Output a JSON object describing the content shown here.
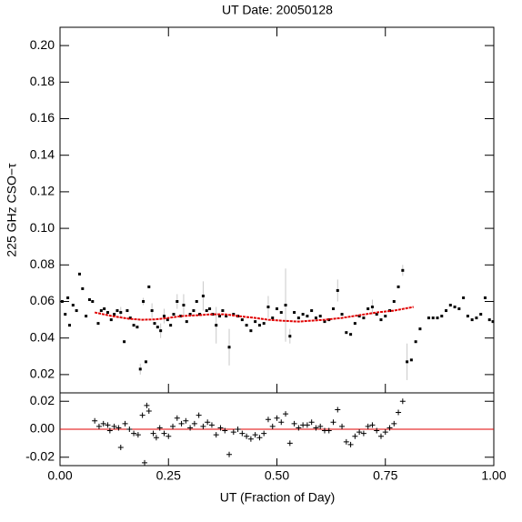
{
  "chart_data": [
    {
      "type": "scatter",
      "title": "UT Date: 20050128",
      "y_label": "225 GHz CSO−τ",
      "color": "#000000",
      "error_color": "#c8c8c8",
      "xlim": [
        0,
        1
      ],
      "ylim": [
        0.01,
        0.21
      ],
      "yticks": [
        {
          "value": 0.02,
          "label": "0.02"
        },
        {
          "value": 0.04,
          "label": "0.04"
        },
        {
          "value": 0.06,
          "label": "0.06"
        },
        {
          "value": 0.08,
          "label": "0.08"
        },
        {
          "value": 0.1,
          "label": "0.10"
        },
        {
          "value": 0.12,
          "label": "0.12"
        },
        {
          "value": 0.14,
          "label": "0.14"
        },
        {
          "value": 0.16,
          "label": "0.16"
        },
        {
          "value": 0.18,
          "label": "0.18"
        },
        {
          "value": 0.2,
          "label": "0.20"
        }
      ],
      "x": [
        0.005,
        0.012,
        0.018,
        0.022,
        0.03,
        0.038,
        0.045,
        0.052,
        0.06,
        0.068,
        0.075,
        0.088,
        0.095,
        0.102,
        0.11,
        0.118,
        0.125,
        0.132,
        0.14,
        0.148,
        0.155,
        0.162,
        0.17,
        0.178,
        0.185,
        0.192,
        0.198,
        0.205,
        0.212,
        0.218,
        0.225,
        0.232,
        0.24,
        0.248,
        0.255,
        0.262,
        0.27,
        0.278,
        0.285,
        0.292,
        0.3,
        0.308,
        0.315,
        0.322,
        0.33,
        0.338,
        0.345,
        0.352,
        0.36,
        0.368,
        0.375,
        0.383,
        0.39,
        0.4,
        0.41,
        0.42,
        0.43,
        0.44,
        0.45,
        0.46,
        0.47,
        0.48,
        0.49,
        0.5,
        0.51,
        0.52,
        0.53,
        0.54,
        0.55,
        0.56,
        0.57,
        0.58,
        0.59,
        0.6,
        0.61,
        0.62,
        0.63,
        0.64,
        0.65,
        0.66,
        0.67,
        0.68,
        0.69,
        0.7,
        0.71,
        0.72,
        0.73,
        0.74,
        0.75,
        0.76,
        0.77,
        0.78,
        0.79,
        0.8,
        0.81,
        0.82,
        0.83,
        0.85,
        0.86,
        0.87,
        0.88,
        0.89,
        0.9,
        0.91,
        0.92,
        0.93,
        0.94,
        0.95,
        0.96,
        0.97,
        0.98,
        0.99,
        0.998
      ],
      "values": [
        0.06,
        0.053,
        0.062,
        0.047,
        0.058,
        0.055,
        0.075,
        0.067,
        0.052,
        0.061,
        0.06,
        0.048,
        0.055,
        0.056,
        0.054,
        0.05,
        0.053,
        0.055,
        0.054,
        0.038,
        0.055,
        0.051,
        0.047,
        0.046,
        0.023,
        0.06,
        0.027,
        0.068,
        0.055,
        0.048,
        0.046,
        0.044,
        0.052,
        0.05,
        0.047,
        0.053,
        0.06,
        0.052,
        0.058,
        0.049,
        0.053,
        0.055,
        0.06,
        0.053,
        0.063,
        0.055,
        0.056,
        0.053,
        0.047,
        0.052,
        0.055,
        0.052,
        0.035,
        0.053,
        0.052,
        0.05,
        0.047,
        0.044,
        0.049,
        0.047,
        0.048,
        0.057,
        0.051,
        0.056,
        0.054,
        0.058,
        0.041,
        0.054,
        0.051,
        0.053,
        0.052,
        0.055,
        0.051,
        0.052,
        0.049,
        0.05,
        0.056,
        0.066,
        0.053,
        0.043,
        0.042,
        0.048,
        0.052,
        0.051,
        0.056,
        0.057,
        0.053,
        0.05,
        0.052,
        0.055,
        0.06,
        0.068,
        0.077,
        0.027,
        0.028,
        0.038,
        0.045,
        0.051,
        0.051,
        0.051,
        0.052,
        0.055,
        0.058,
        0.057,
        0.056,
        0.062,
        0.052,
        0.05,
        0.051,
        0.053,
        0.062,
        0.05,
        0.049
      ],
      "errors": [
        null,
        null,
        null,
        null,
        null,
        null,
        null,
        null,
        null,
        null,
        null,
        null,
        null,
        null,
        null,
        null,
        null,
        null,
        0.003,
        null,
        null,
        null,
        null,
        null,
        0.003,
        0.002,
        null,
        null,
        0.004,
        null,
        null,
        0.004,
        0.004,
        null,
        null,
        null,
        0.004,
        null,
        0.006,
        null,
        null,
        null,
        null,
        null,
        0.008,
        null,
        null,
        null,
        0.01,
        null,
        null,
        null,
        0.01,
        null,
        null,
        null,
        null,
        null,
        null,
        null,
        null,
        0.006,
        null,
        null,
        null,
        0.02,
        0.004,
        null,
        null,
        null,
        null,
        null,
        null,
        null,
        null,
        null,
        null,
        0.006,
        null,
        null,
        null,
        null,
        null,
        null,
        null,
        0.004,
        null,
        null,
        null,
        null,
        null,
        null,
        0.003,
        0.01,
        null,
        null,
        null,
        null,
        null,
        null,
        null,
        null,
        null,
        null,
        null,
        null,
        null,
        null,
        null,
        null,
        null,
        null,
        null
      ],
      "fit": {
        "color": "#e00000",
        "x": [
          0.08,
          0.12,
          0.16,
          0.19,
          0.22,
          0.25,
          0.28,
          0.32,
          0.35,
          0.38,
          0.41,
          0.45,
          0.48,
          0.51,
          0.55,
          0.58,
          0.61,
          0.65,
          0.69,
          0.73,
          0.77,
          0.815
        ],
        "values": [
          0.054,
          0.052,
          0.0505,
          0.05,
          0.0502,
          0.051,
          0.052,
          0.0525,
          0.053,
          0.053,
          0.052,
          0.051,
          0.05,
          0.0495,
          0.049,
          0.0495,
          0.05,
          0.051,
          0.0525,
          0.054,
          0.055,
          0.057
        ]
      }
    },
    {
      "type": "residual",
      "x_label": "UT (Fraction of Day)",
      "color": "#000000",
      "zero_line_color": "#e00000",
      "xlim": [
        0,
        1
      ],
      "ylim": [
        -0.026,
        0.026
      ],
      "xticks": [
        {
          "value": 0,
          "label": "0.00"
        },
        {
          "value": 0.25,
          "label": "0.25"
        },
        {
          "value": 0.5,
          "label": "0.50"
        },
        {
          "value": 0.75,
          "label": "0.75"
        },
        {
          "value": 1,
          "label": "1.00"
        }
      ],
      "yticks": [
        {
          "value": -0.02,
          "label": "-0.02"
        },
        {
          "value": 0,
          "label": "0.00"
        },
        {
          "value": 0.02,
          "label": "0.02"
        }
      ],
      "x": [
        0.08,
        0.09,
        0.1,
        0.11,
        0.115,
        0.125,
        0.135,
        0.14,
        0.15,
        0.16,
        0.17,
        0.18,
        0.19,
        0.195,
        0.2,
        0.205,
        0.215,
        0.222,
        0.23,
        0.24,
        0.25,
        0.26,
        0.27,
        0.28,
        0.29,
        0.3,
        0.31,
        0.32,
        0.33,
        0.34,
        0.35,
        0.36,
        0.37,
        0.38,
        0.39,
        0.4,
        0.41,
        0.42,
        0.43,
        0.44,
        0.45,
        0.46,
        0.47,
        0.48,
        0.49,
        0.5,
        0.51,
        0.52,
        0.53,
        0.54,
        0.55,
        0.56,
        0.57,
        0.58,
        0.59,
        0.6,
        0.61,
        0.62,
        0.63,
        0.64,
        0.65,
        0.66,
        0.67,
        0.68,
        0.69,
        0.7,
        0.71,
        0.72,
        0.73,
        0.74,
        0.75,
        0.76,
        0.77,
        0.78,
        0.79
      ],
      "values": [
        0.006,
        0.002,
        0.004,
        0.003,
        -0.001,
        0.002,
        0.001,
        -0.013,
        0.004,
        0.0,
        -0.003,
        -0.004,
        0.01,
        -0.024,
        0.017,
        0.013,
        -0.003,
        -0.006,
        0.001,
        -0.003,
        -0.005,
        0.002,
        0.008,
        0.004,
        0.006,
        0.001,
        0.004,
        0.01,
        0.002,
        0.005,
        0.003,
        -0.004,
        0.001,
        -0.001,
        -0.018,
        -0.002,
        0.0,
        -0.003,
        -0.005,
        -0.007,
        -0.004,
        -0.006,
        -0.003,
        0.007,
        0.002,
        0.008,
        0.005,
        0.011,
        -0.01,
        0.004,
        0.001,
        0.003,
        0.003,
        0.005,
        0.001,
        0.002,
        -0.001,
        -0.001,
        0.005,
        0.014,
        0.002,
        -0.009,
        -0.011,
        -0.005,
        -0.002,
        -0.003,
        0.002,
        0.003,
        -0.001,
        -0.005,
        -0.002,
        0.001,
        0.004,
        0.012,
        0.02
      ]
    }
  ]
}
